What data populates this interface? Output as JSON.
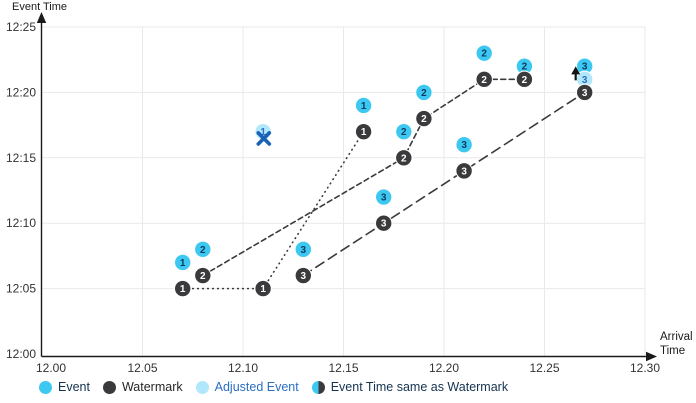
{
  "titles": {
    "y_axis": "Event Time",
    "x_axis_line1": "Arrival",
    "x_axis_line2": "Time"
  },
  "colors": {
    "event": "#3dc8f2",
    "watermark": "#3a3a3c",
    "adjusted": "#b0e7fa",
    "event_number": "#0a3c61",
    "adjusted_number": "#2a6fc4",
    "watermark_number": "#ffffff",
    "x_mark": "#1b62b5",
    "arrow": "#141414",
    "grid": "#e9e9e9",
    "axis": "#1a1a1a",
    "tick_text": "#333333"
  },
  "legend": {
    "items": [
      {
        "label": "Event",
        "icon": "event",
        "text_color": "#14324f"
      },
      {
        "label": "Watermark",
        "icon": "watermark",
        "text_color": "#262626"
      },
      {
        "label": "Adjusted Event",
        "icon": "adjusted",
        "text_color": "#2a6fc4"
      },
      {
        "label": "Event Time same as Watermark",
        "icon": "half",
        "text_color": "#14324f"
      }
    ]
  },
  "chart_data": {
    "type": "scatter",
    "x_axis": {
      "label": "Arrival Time",
      "min": 12.0,
      "max": 12.3,
      "ticks": [
        {
          "label": "12.00",
          "value": 12.0
        },
        {
          "label": "12.05",
          "value": 12.05
        },
        {
          "label": "12.10",
          "value": 12.1
        },
        {
          "label": "12.15",
          "value": 12.15
        },
        {
          "label": "12.20",
          "value": 12.2
        },
        {
          "label": "12.25",
          "value": 12.25
        },
        {
          "label": "12.30",
          "value": 12.3
        }
      ]
    },
    "y_axis": {
      "label": "Event Time",
      "min": "12:00",
      "max": "12:25",
      "ticks": [
        {
          "label": "12:00",
          "minutes": 0
        },
        {
          "label": "12:05",
          "minutes": 5
        },
        {
          "label": "12:10",
          "minutes": 10
        },
        {
          "label": "12:15",
          "minutes": 15
        },
        {
          "label": "12:20",
          "minutes": 20
        },
        {
          "label": "12:25",
          "minutes": 25
        }
      ]
    },
    "grid": true,
    "legend_position": "bottom",
    "series": [
      {
        "id": "1",
        "line_style": "dotted",
        "events": [
          {
            "arrival": 12.07,
            "event_time": "12:07"
          },
          {
            "arrival": 12.16,
            "event_time": "12:19"
          }
        ],
        "watermarks": [
          {
            "arrival": 12.07,
            "event_time": "12:05"
          },
          {
            "arrival": 12.11,
            "event_time": "12:05"
          },
          {
            "arrival": 12.16,
            "event_time": "12:17"
          }
        ],
        "adjusted_events": [
          {
            "arrival": 12.11,
            "event_time": "12:17",
            "annotation": "discarded-x"
          }
        ]
      },
      {
        "id": "2",
        "line_style": "dashed",
        "events": [
          {
            "arrival": 12.08,
            "event_time": "12:08"
          },
          {
            "arrival": 12.18,
            "event_time": "12:17"
          },
          {
            "arrival": 12.19,
            "event_time": "12:20"
          },
          {
            "arrival": 12.22,
            "event_time": "12:23"
          },
          {
            "arrival": 12.24,
            "event_time": "12:22"
          }
        ],
        "watermarks": [
          {
            "arrival": 12.08,
            "event_time": "12:06"
          },
          {
            "arrival": 12.18,
            "event_time": "12:15"
          },
          {
            "arrival": 12.19,
            "event_time": "12:18"
          },
          {
            "arrival": 12.22,
            "event_time": "12:21"
          },
          {
            "arrival": 12.24,
            "event_time": "12:21"
          }
        ],
        "adjusted_events": []
      },
      {
        "id": "3",
        "line_style": "long-dash",
        "events": [
          {
            "arrival": 12.13,
            "event_time": "12:08"
          },
          {
            "arrival": 12.17,
            "event_time": "12:12"
          },
          {
            "arrival": 12.21,
            "event_time": "12:16"
          },
          {
            "arrival": 12.27,
            "event_time": "12:22"
          }
        ],
        "watermarks": [
          {
            "arrival": 12.13,
            "event_time": "12:06"
          },
          {
            "arrival": 12.17,
            "event_time": "12:10"
          },
          {
            "arrival": 12.21,
            "event_time": "12:14"
          },
          {
            "arrival": 12.27,
            "event_time": "12:20"
          }
        ],
        "adjusted_events": [
          {
            "arrival": 12.27,
            "event_time": "12:21",
            "annotation": "shifted-up-arrow"
          }
        ]
      }
    ]
  }
}
